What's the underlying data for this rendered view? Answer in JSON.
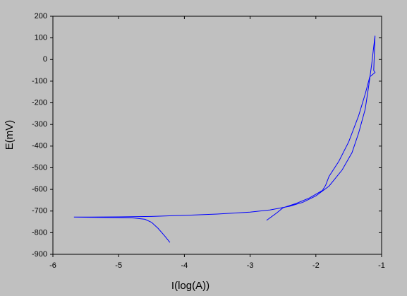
{
  "chart_data": {
    "type": "line",
    "x_label": "I(log(A))",
    "y_label": "E(mV)",
    "x": [
      -4.22,
      -4.3,
      -4.4,
      -4.5,
      -4.6,
      -4.8,
      -5.2,
      -5.68,
      -5.0,
      -4.5,
      -4.0,
      -3.5,
      -3.0,
      -2.7,
      -2.4,
      -2.2,
      -2.0,
      -1.8,
      -1.6,
      -1.45,
      -1.35,
      -1.25,
      -1.2,
      -1.15,
      -1.12,
      -1.1,
      -1.12,
      -1.1,
      -1.18,
      -1.25,
      -1.35,
      -1.5,
      -1.65,
      -1.8,
      -1.85,
      -1.9,
      -2.1,
      -2.3,
      -2.5,
      -2.6,
      -2.75
    ],
    "values": [
      -845,
      -815,
      -780,
      -752,
      -738,
      -731,
      -730,
      -728,
      -727,
      -725,
      -720,
      -714,
      -705,
      -695,
      -678,
      -660,
      -630,
      -585,
      -510,
      -430,
      -340,
      -230,
      -130,
      -20,
      60,
      110,
      -50,
      -60,
      -80,
      -160,
      -260,
      -380,
      -470,
      -540,
      -580,
      -605,
      -640,
      -665,
      -685,
      -710,
      -743
    ],
    "color": "#0000ff",
    "xlim": [
      -6,
      -1
    ],
    "xticks": [
      -6,
      -5,
      -4,
      -3,
      -2,
      -1
    ],
    "ylim": [
      -900,
      200
    ],
    "yticks": [
      200,
      100,
      0,
      -100,
      -200,
      -300,
      -400,
      -500,
      -600,
      -700,
      -800,
      -900
    ]
  }
}
